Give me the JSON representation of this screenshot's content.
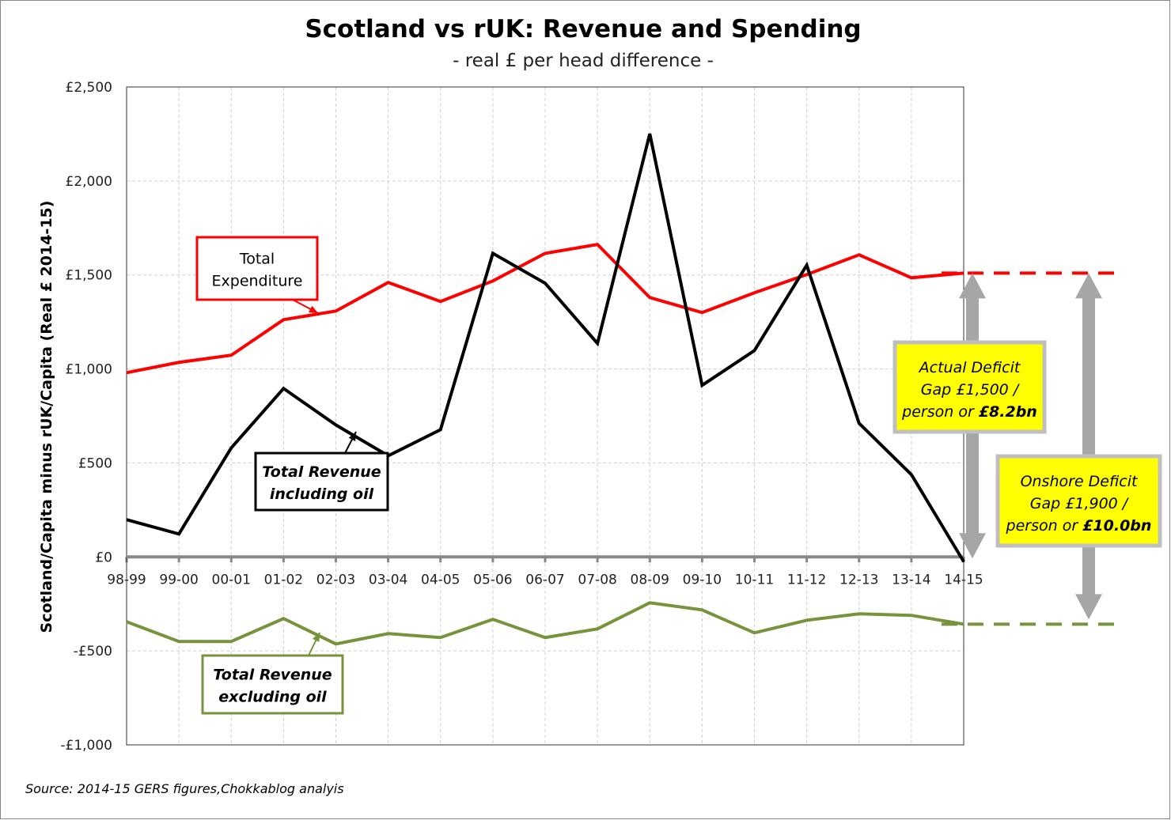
{
  "chart_data": {
    "type": "line",
    "title": "Scotland vs rUK: Revenue and Spending",
    "subtitle": "- real £ per head difference -",
    "ylabel": "Scotland/Capita minus rUK/Capita (Real £ 2014-15)",
    "xlabel": "",
    "ylim": [
      -1000,
      2500
    ],
    "yticks": [
      2500,
      2000,
      1500,
      1000,
      500,
      0,
      -500,
      -1000
    ],
    "ytick_labels": [
      "£2,500",
      "£2,000",
      "£1,500",
      "£1,000",
      "£500",
      "£0",
      "-£500",
      "-£1,000"
    ],
    "grid": true,
    "categories": [
      "98-99",
      "99-00",
      "00-01",
      "01-02",
      "02-03",
      "03-04",
      "04-05",
      "05-06",
      "06-07",
      "07-08",
      "08-09",
      "09-10",
      "10-11",
      "11-12",
      "12-13",
      "13-14",
      "14-15"
    ],
    "series": [
      {
        "name": "Total Expenditure",
        "color": "#ff0000",
        "values": [
          980,
          1035,
          1073,
          1262,
          1308,
          1460,
          1359,
          1468,
          1615,
          1662,
          1380,
          1300,
          1405,
          1502,
          1607,
          1485,
          1510
        ]
      },
      {
        "name": "Total Revenue including oil",
        "color": "#000000",
        "values": [
          198,
          122,
          580,
          896,
          702,
          538,
          677,
          1615,
          1456,
          1136,
          2251,
          913,
          1098,
          1552,
          711,
          438,
          -25
        ]
      },
      {
        "name": "Total Revenue excluding oil",
        "color": "#77933c",
        "values": [
          -345,
          -450,
          -450,
          -328,
          -463,
          -408,
          -429,
          -332,
          -429,
          -383,
          -244,
          -282,
          -404,
          -337,
          -303,
          -311,
          -358
        ]
      }
    ],
    "annotations": {
      "actual": [
        "Actual Deficit",
        "Gap £1,500 /",
        "person or ",
        "£8.2bn"
      ],
      "onshore": [
        "Onshore Deficit",
        "Gap £1,900 /",
        "person or ",
        "£10.0bn"
      ],
      "highlight_color": "#ffff00"
    },
    "source": "Source: 2014-15 GERS figures,Chokkablog analyis"
  }
}
